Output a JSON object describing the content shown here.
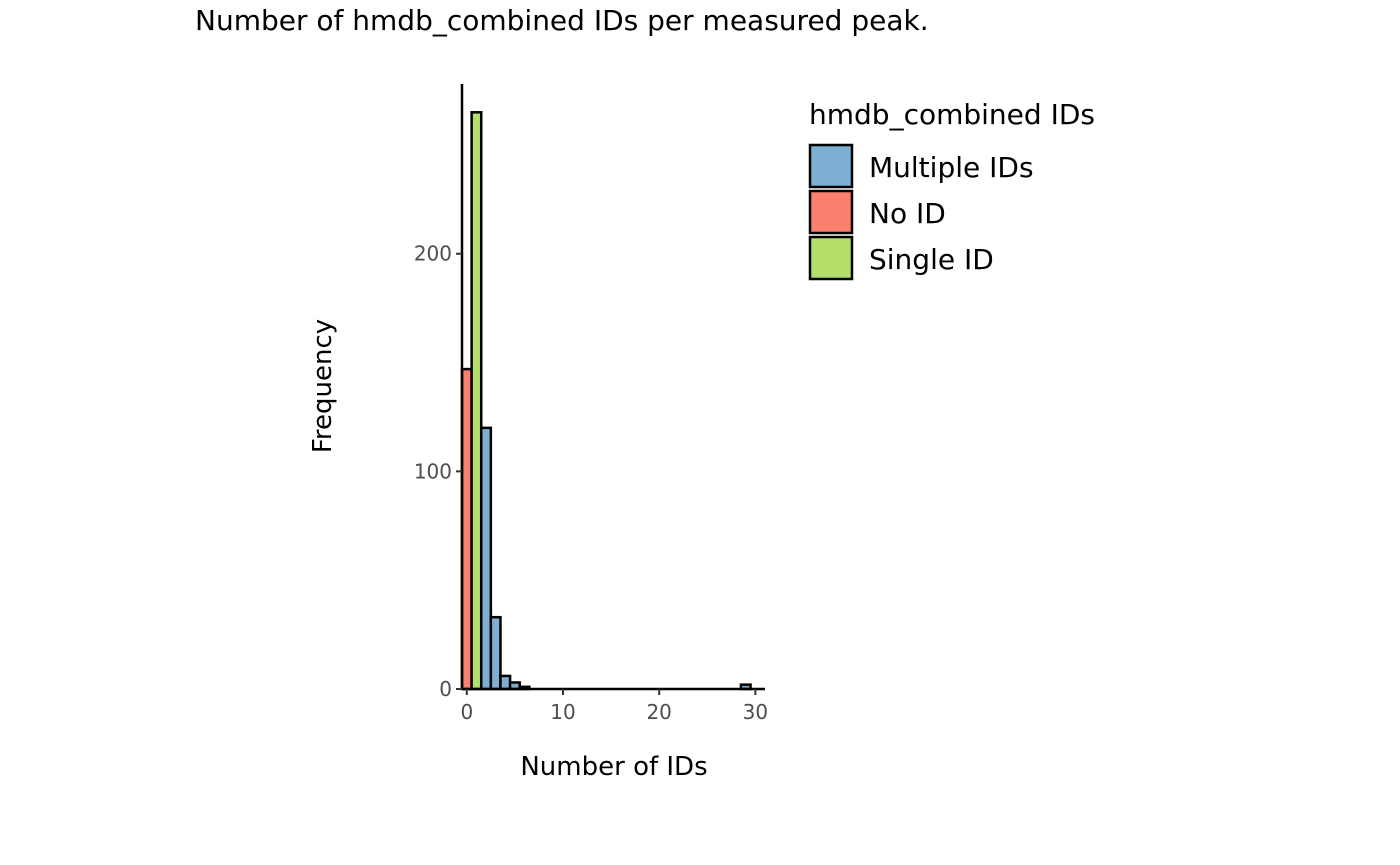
{
  "chart_data": {
    "type": "bar",
    "title": "Number of hmdb_combined IDs per measured peak.",
    "xlabel": "Number of IDs",
    "ylabel": "Frequency",
    "xlim": [
      -0.5,
      31
    ],
    "ylim": [
      0,
      278
    ],
    "xticks": [
      0,
      10,
      20,
      30
    ],
    "yticks": [
      0,
      100,
      200
    ],
    "bin_width": 1,
    "grid": false,
    "legend": {
      "title": "hmdb_combined IDs",
      "placement": "right",
      "entries": [
        {
          "label": "Multiple IDs",
          "color": "#7faed3"
        },
        {
          "label": "No ID",
          "color": "#fb7f6f"
        },
        {
          "label": "Single ID",
          "color": "#b3de69"
        }
      ]
    },
    "series": [
      {
        "name": "No ID",
        "color": "#fb7f6f",
        "bins": [
          {
            "x": 0,
            "value": 147
          }
        ]
      },
      {
        "name": "Single ID",
        "color": "#b3de69",
        "bins": [
          {
            "x": 1,
            "value": 265
          }
        ]
      },
      {
        "name": "Multiple IDs",
        "color": "#7faed3",
        "bins": [
          {
            "x": 2,
            "value": 120
          },
          {
            "x": 3,
            "value": 33
          },
          {
            "x": 4,
            "value": 6
          },
          {
            "x": 5,
            "value": 3
          },
          {
            "x": 6,
            "value": 1
          },
          {
            "x": 7,
            "value": 0
          },
          {
            "x": 8,
            "value": 0
          },
          {
            "x": 9,
            "value": 0
          },
          {
            "x": 10,
            "value": 0
          },
          {
            "x": 11,
            "value": 0
          },
          {
            "x": 12,
            "value": 0
          },
          {
            "x": 13,
            "value": 0
          },
          {
            "x": 14,
            "value": 0
          },
          {
            "x": 15,
            "value": 0
          },
          {
            "x": 16,
            "value": 0
          },
          {
            "x": 17,
            "value": 0
          },
          {
            "x": 18,
            "value": 0
          },
          {
            "x": 19,
            "value": 0
          },
          {
            "x": 20,
            "value": 0
          },
          {
            "x": 21,
            "value": 0
          },
          {
            "x": 22,
            "value": 0
          },
          {
            "x": 23,
            "value": 0
          },
          {
            "x": 24,
            "value": 0
          },
          {
            "x": 25,
            "value": 0
          },
          {
            "x": 26,
            "value": 0
          },
          {
            "x": 27,
            "value": 0
          },
          {
            "x": 28,
            "value": 0
          },
          {
            "x": 29,
            "value": 2
          }
        ]
      }
    ]
  }
}
